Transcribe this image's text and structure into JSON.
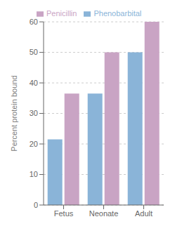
{
  "chart_data": {
    "type": "bar",
    "categories": [
      "Fetus",
      "Neonate",
      "Adult"
    ],
    "series": [
      {
        "name": "Phenobarbital",
        "color": "#8ab4d8",
        "values": [
          21.5,
          36.5,
          50
        ]
      },
      {
        "name": "Penicillin",
        "color": "#c9a4c4",
        "values": [
          36.5,
          50,
          60
        ]
      }
    ],
    "ylabel": "Percent protein bound",
    "ylim": [
      0,
      60
    ],
    "yticks": [
      0,
      10,
      20,
      30,
      40,
      50,
      60
    ],
    "grid": true,
    "legend": "upper left"
  }
}
